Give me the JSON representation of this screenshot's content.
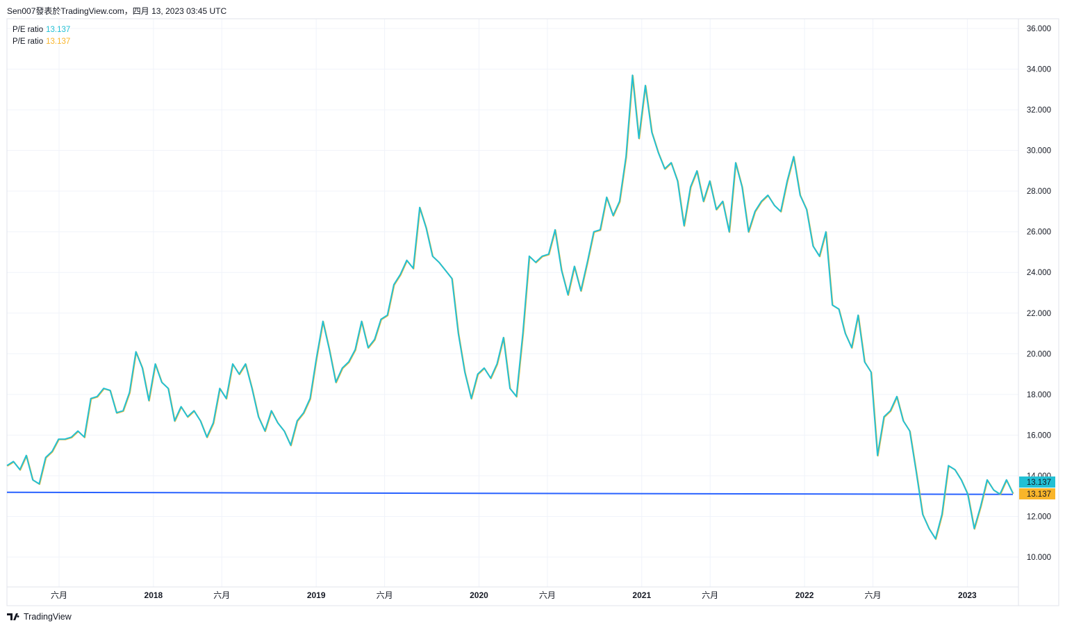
{
  "header": {
    "title": "Sen007發表於TradingView.com，四月 13, 2023 03:45 UTC"
  },
  "legend": [
    {
      "label": "P/E ratio",
      "value": "13.137",
      "color": "#22c0d4"
    },
    {
      "label": "P/E ratio",
      "value": "13.137",
      "color": "#f9b52a"
    }
  ],
  "footer": {
    "brand": "TradingView"
  },
  "chart_data": {
    "type": "line",
    "title": "P/E ratio",
    "ylim": [
      10,
      36
    ],
    "yticks": [
      "10.000",
      "12.000",
      "14.000",
      "16.000",
      "18.000",
      "20.000",
      "22.000",
      "24.000",
      "26.000",
      "28.000",
      "30.000",
      "32.000",
      "34.000",
      "36.000"
    ],
    "ytick_values": [
      10,
      12,
      14,
      16,
      18,
      20,
      22,
      24,
      26,
      28,
      30,
      32,
      34,
      36
    ],
    "xlim": [
      2017.1,
      2023.28
    ],
    "xticks": [
      {
        "label": "六月",
        "t": 2017.42
      },
      {
        "label": "2018",
        "t": 2018.0
      },
      {
        "label": "六月",
        "t": 2018.42
      },
      {
        "label": "2019",
        "t": 2019.0
      },
      {
        "label": "六月",
        "t": 2019.42
      },
      {
        "label": "2020",
        "t": 2020.0
      },
      {
        "label": "六月",
        "t": 2020.42
      },
      {
        "label": "2021",
        "t": 2021.0
      },
      {
        "label": "六月",
        "t": 2021.42
      },
      {
        "label": "2022",
        "t": 2022.0
      },
      {
        "label": "六月",
        "t": 2022.42
      },
      {
        "label": "2023",
        "t": 2023.0
      }
    ],
    "grid": true,
    "series": [
      {
        "name": "P/E ratio",
        "color": "#22c0d4",
        "last": "13.137",
        "values": [
          14.5,
          14.7,
          14.3,
          15.0,
          13.8,
          13.6,
          14.9,
          15.2,
          15.8,
          15.8,
          15.9,
          16.2,
          15.9,
          17.8,
          17.9,
          18.3,
          18.2,
          17.1,
          17.2,
          18.1,
          20.1,
          19.3,
          17.7,
          19.5,
          18.6,
          18.3,
          16.7,
          17.4,
          16.9,
          17.2,
          16.7,
          15.9,
          16.6,
          18.3,
          17.8,
          19.5,
          19.0,
          19.5,
          18.3,
          16.9,
          16.2,
          17.2,
          16.6,
          16.2,
          15.5,
          16.7,
          17.1,
          17.8,
          19.8,
          21.6,
          20.2,
          18.6,
          19.3,
          19.6,
          20.2,
          21.6,
          20.3,
          20.7,
          21.7,
          21.9,
          23.4,
          23.9,
          24.6,
          24.2,
          27.2,
          26.2,
          24.8,
          24.5,
          24.1,
          23.7,
          21.0,
          19.1,
          17.8,
          19.0,
          19.3,
          18.8,
          19.5,
          20.8,
          18.3,
          17.9,
          21.0,
          24.8,
          24.5,
          24.8,
          24.9,
          26.1,
          24.1,
          22.9,
          24.3,
          23.1,
          24.5,
          26.0,
          26.1,
          27.7,
          26.8,
          27.5,
          29.7,
          33.7,
          30.6,
          33.2,
          30.9,
          29.9,
          29.1,
          29.4,
          28.5,
          26.3,
          28.2,
          29.0,
          27.5,
          28.5,
          27.1,
          27.5,
          26.0,
          29.4,
          28.2,
          26.0,
          27.0,
          27.5,
          27.8,
          27.3,
          27.0,
          28.5,
          29.7,
          27.8,
          27.1,
          25.3,
          24.8,
          26.0,
          22.4,
          22.2,
          21.0,
          20.3,
          21.9,
          19.6,
          19.1,
          15.0,
          16.9,
          17.2,
          17.9,
          16.7,
          16.2,
          14.2,
          12.1,
          11.4,
          10.9,
          12.1,
          14.5,
          14.3,
          13.8,
          13.1,
          11.4,
          12.5,
          13.8,
          13.3,
          13.1,
          13.8,
          13.137
        ]
      },
      {
        "name": "P/E ratio",
        "color": "#f9b52a",
        "last": "13.137"
      }
    ],
    "hline": {
      "value": 13.15,
      "color": "#2962ff"
    }
  }
}
